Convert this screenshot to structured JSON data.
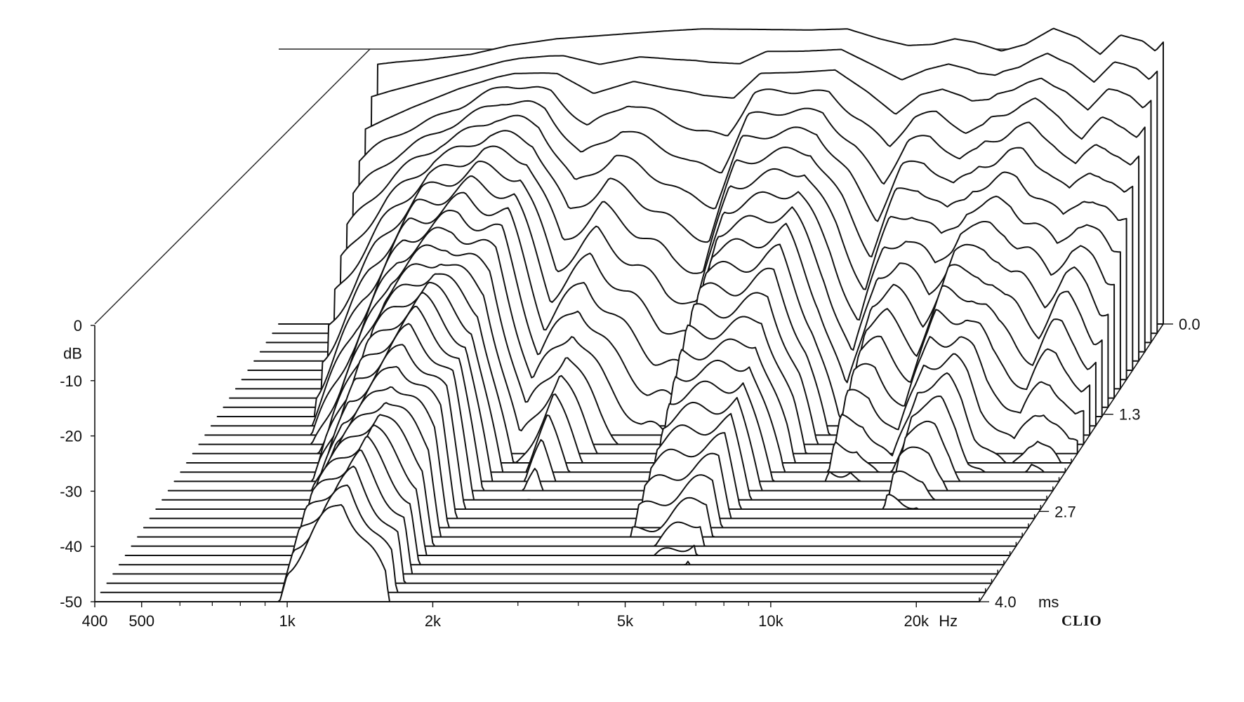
{
  "chart_data": {
    "type": "waterfall",
    "title": "",
    "x_axis": {
      "scale": "log",
      "range": [
        400,
        27000
      ],
      "tick_labels": [
        {
          "value": 400,
          "label": "400"
        },
        {
          "value": 500,
          "label": "500"
        },
        {
          "value": 1000,
          "label": "1k"
        },
        {
          "value": 2000,
          "label": "2k"
        },
        {
          "value": 5000,
          "label": "5k"
        },
        {
          "value": 10000,
          "label": "10k"
        },
        {
          "value": 20000,
          "label": "20k"
        }
      ],
      "unit_label": "Hz",
      "minor_ticks": [
        600,
        700,
        800,
        900,
        3000,
        4000,
        6000,
        7000,
        8000,
        9000
      ]
    },
    "y_axis": {
      "unit_label": "dB",
      "range": [
        -50,
        0
      ],
      "tick_labels": [
        {
          "value": 0,
          "label": "0"
        },
        {
          "value": -10,
          "label": "-10"
        },
        {
          "value": -20,
          "label": "-20"
        },
        {
          "value": -30,
          "label": "-30"
        },
        {
          "value": -40,
          "label": "-40"
        },
        {
          "value": -50,
          "label": "-50"
        }
      ]
    },
    "time_axis": {
      "unit_label": "ms",
      "range": [
        0.0,
        4.0
      ],
      "tick_labels": [
        {
          "value": 0.0,
          "label": "0.0"
        },
        {
          "value": 1.3,
          "label": "1.3"
        },
        {
          "value": 2.7,
          "label": "2.7"
        },
        {
          "value": 4.0,
          "label": "4.0"
        }
      ]
    },
    "brand": "CLIO",
    "slices": {
      "count": 31,
      "time_step_ms": 0.1333,
      "first_slice_db": [
        {
          "f": 640,
          "db": -3
        },
        {
          "f": 700,
          "db": -2.6
        },
        {
          "f": 800,
          "db": -2.2
        },
        {
          "f": 1000,
          "db": -1.2
        },
        {
          "f": 1200,
          "db": 0.4
        },
        {
          "f": 1500,
          "db": 1.6
        },
        {
          "f": 2000,
          "db": 2.4
        },
        {
          "f": 2500,
          "db": 3.0
        },
        {
          "f": 3000,
          "db": 3.4
        },
        {
          "f": 4000,
          "db": 3.3
        },
        {
          "f": 5000,
          "db": 3.2
        },
        {
          "f": 6000,
          "db": 3.4
        },
        {
          "f": 7000,
          "db": 1.6
        },
        {
          "f": 8000,
          "db": 0.4
        },
        {
          "f": 9000,
          "db": 0.6
        },
        {
          "f": 10000,
          "db": 1.6
        },
        {
          "f": 11000,
          "db": 1.0
        },
        {
          "f": 12500,
          "db": -0.6
        },
        {
          "f": 14000,
          "db": 0.6
        },
        {
          "f": 16000,
          "db": 3.5
        },
        {
          "f": 18000,
          "db": 1.8
        },
        {
          "f": 20000,
          "db": -1.2
        },
        {
          "f": 22000,
          "db": 2.3
        },
        {
          "f": 24500,
          "db": 1.2
        },
        {
          "f": 26000,
          "db": -0.6
        },
        {
          "f": 27000,
          "db": 1.0
        }
      ],
      "decay_db_per_slice": [
        {
          "f": 640,
          "rate": 3.5
        },
        {
          "f": 800,
          "rate": 2.2
        },
        {
          "f": 1000,
          "rate": 1.2
        },
        {
          "f": 1300,
          "rate": 0.9
        },
        {
          "f": 1600,
          "rate": 1.3
        },
        {
          "f": 1900,
          "rate": 3.0
        },
        {
          "f": 2300,
          "rate": 2.3
        },
        {
          "f": 2700,
          "rate": 3.0
        },
        {
          "f": 3200,
          "rate": 3.6
        },
        {
          "f": 3700,
          "rate": 3.8
        },
        {
          "f": 4200,
          "rate": 1.9
        },
        {
          "f": 5000,
          "rate": 1.8
        },
        {
          "f": 6000,
          "rate": 1.7
        },
        {
          "f": 7000,
          "rate": 2.6
        },
        {
          "f": 8000,
          "rate": 3.8
        },
        {
          "f": 9000,
          "rate": 2.4
        },
        {
          "f": 10000,
          "rate": 2.4
        },
        {
          "f": 11500,
          "rate": 2.8
        },
        {
          "f": 13000,
          "rate": 2.0
        },
        {
          "f": 15000,
          "rate": 2.1
        },
        {
          "f": 17000,
          "rate": 2.6
        },
        {
          "f": 20000,
          "rate": 2.8
        },
        {
          "f": 23000,
          "rate": 2.6
        },
        {
          "f": 27000,
          "rate": 3.0
        }
      ]
    },
    "grid": false,
    "legend": "none"
  }
}
